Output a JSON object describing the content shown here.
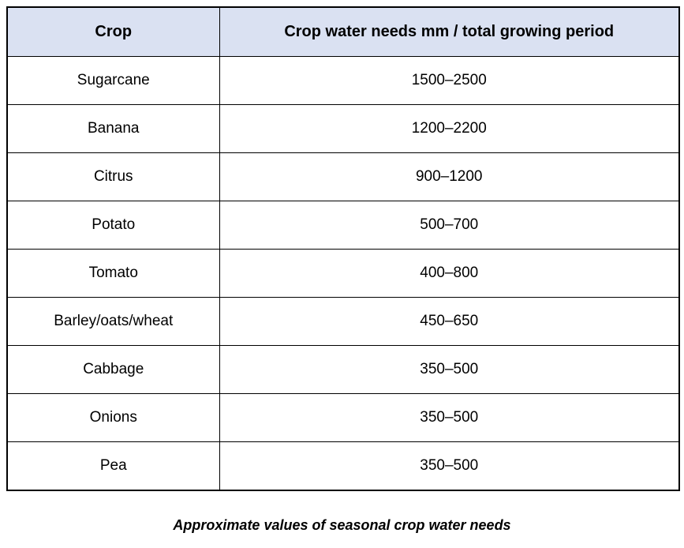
{
  "table": {
    "columns": [
      "Crop",
      "Crop water needs mm / total growing period"
    ],
    "rows": [
      {
        "crop": "Sugarcane",
        "value": "1500–2500"
      },
      {
        "crop": "Banana",
        "value": "1200–2200"
      },
      {
        "crop": "Citrus",
        "value": "900–1200"
      },
      {
        "crop": "Potato",
        "value": "500–700"
      },
      {
        "crop": "Tomato",
        "value": "400–800"
      },
      {
        "crop": "Barley/oats/wheat",
        "value": "450–650"
      },
      {
        "crop": "Cabbage",
        "value": "350–500"
      },
      {
        "crop": "Onions",
        "value": "350–500"
      },
      {
        "crop": "Pea",
        "value": "350–500"
      }
    ]
  },
  "caption": "Approximate values of seasonal crop water needs",
  "colors": {
    "header_bg": "#dae1f2",
    "border": "#000000",
    "text": "#000000"
  }
}
